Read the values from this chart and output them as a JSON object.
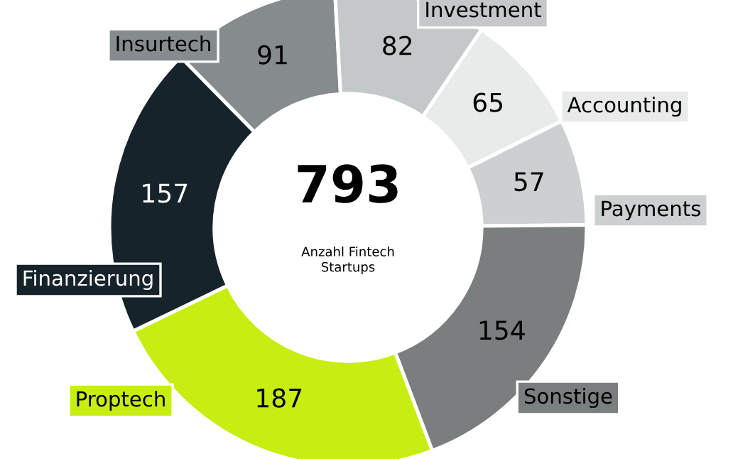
{
  "chart_data": {
    "type": "donut",
    "categories": [
      "Insurtech",
      "Investment",
      "Accounting",
      "Payments",
      "Sonstige",
      "Proptech",
      "Finanzierung"
    ],
    "values": [
      91,
      82,
      65,
      57,
      154,
      187,
      157
    ],
    "colors": [
      "#868c8e",
      "#c5c8c9",
      "#e9eaea",
      "#cdd0d1",
      "#7b7e7f",
      "#c6ee10",
      "#17232a"
    ],
    "data_labels": true,
    "annotations": [
      "793",
      "Anzahl Fintech\nStartups"
    ]
  }
}
